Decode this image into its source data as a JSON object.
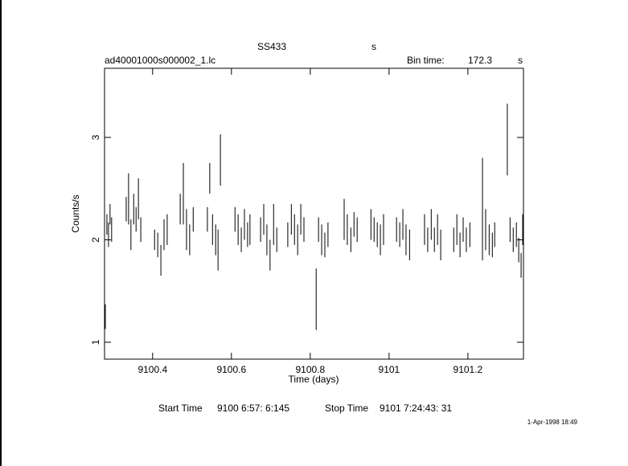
{
  "chart_data": {
    "type": "errorbar",
    "title": "SS433",
    "title_unit": "s",
    "file_name": "ad40001000s000002_1.lc",
    "bin_time_label": "Bin time:",
    "bin_time": "172.3",
    "bin_time_unit": "s",
    "xlabel": "Time (days)",
    "ylabel": "Counts/s",
    "start_label": "Start Time",
    "start_time": "9100  6:57: 6:145",
    "stop_label": "Stop Time",
    "stop_time": "9101  7:24:43: 31",
    "date_stamp": "1-Apr-1998 18:49",
    "xlim": [
      9100.278,
      9101.341
    ],
    "xticks": [
      9100.4,
      9100.6,
      9100.8,
      9101,
      9101.2
    ],
    "ylim": [
      0.835,
      3.675
    ],
    "yticks": [
      1,
      2,
      3
    ],
    "color": "#000000",
    "x": [
      9100.28,
      9100.284,
      9100.288,
      9100.292,
      9100.296,
      9100.333,
      9100.339,
      9100.345,
      9100.352,
      9100.358,
      9100.364,
      9100.37,
      9100.405,
      9100.413,
      9100.421,
      9100.429,
      9100.437,
      9100.47,
      9100.478,
      9100.486,
      9100.494,
      9100.503,
      9100.539,
      9100.545,
      9100.552,
      9100.56,
      9100.566,
      9100.572,
      9100.609,
      9100.617,
      9100.625,
      9100.633,
      9100.641,
      9100.647,
      9100.674,
      9100.682,
      9100.69,
      9100.698,
      9100.707,
      9100.715,
      9100.743,
      9100.752,
      9100.76,
      9100.768,
      9100.776,
      9100.784,
      9100.815,
      9100.821,
      9100.829,
      9100.837,
      9100.845,
      9100.886,
      9100.894,
      9100.903,
      9100.911,
      9100.919,
      9100.954,
      9100.962,
      9100.97,
      9100.978,
      9100.986,
      9101.019,
      9101.027,
      9101.035,
      9101.043,
      9101.052,
      9101.09,
      9101.098,
      9101.107,
      9101.115,
      9101.123,
      9101.131,
      9101.164,
      9101.172,
      9101.18,
      9101.188,
      9101.196,
      9101.205,
      9101.237,
      9101.245,
      9101.254,
      9101.262,
      9101.268,
      9101.3,
      9101.307,
      9101.315,
      9101.323,
      9101.329,
      9101.335,
      9101.339
    ],
    "values": [
      1.25,
      2.15,
      2.05,
      2.25,
      2.1,
      2.3,
      2.4,
      2.05,
      2.3,
      2.2,
      2.4,
      2.1,
      2.0,
      1.95,
      1.8,
      2.05,
      2.1,
      2.3,
      2.45,
      2.1,
      2.0,
      2.2,
      2.2,
      2.6,
      2.1,
      2.0,
      1.9,
      2.78,
      2.2,
      2.1,
      2.0,
      2.15,
      2.05,
      2.1,
      2.1,
      2.2,
      2.0,
      1.85,
      2.15,
      2.0,
      2.05,
      2.2,
      2.1,
      2.0,
      2.2,
      2.1,
      1.42,
      2.1,
      2.0,
      1.95,
      2.05,
      2.2,
      2.1,
      2.0,
      2.15,
      2.1,
      2.15,
      2.1,
      2.05,
      2.0,
      2.1,
      2.1,
      2.05,
      2.15,
      2.0,
      1.95,
      2.1,
      2.0,
      2.15,
      2.0,
      2.1,
      1.95,
      2.0,
      2.1,
      1.95,
      2.1,
      2.0,
      2.05,
      2.3,
      2.1,
      2.0,
      1.95,
      2.05,
      2.98,
      2.1,
      2.0,
      2.05,
      1.9,
      1.75,
      2.1
    ],
    "errors": [
      0.12,
      0.1,
      0.12,
      0.1,
      0.12,
      0.12,
      0.25,
      0.15,
      0.15,
      0.12,
      0.2,
      0.12,
      0.1,
      0.12,
      0.15,
      0.15,
      0.15,
      0.15,
      0.3,
      0.2,
      0.15,
      0.12,
      0.12,
      0.15,
      0.15,
      0.15,
      0.2,
      0.25,
      0.12,
      0.15,
      0.12,
      0.15,
      0.12,
      0.15,
      0.12,
      0.15,
      0.15,
      0.15,
      0.2,
      0.12,
      0.12,
      0.15,
      0.15,
      0.15,
      0.15,
      0.12,
      0.3,
      0.12,
      0.15,
      0.12,
      0.12,
      0.2,
      0.15,
      0.12,
      0.12,
      0.12,
      0.15,
      0.12,
      0.12,
      0.15,
      0.15,
      0.12,
      0.12,
      0.15,
      0.15,
      0.15,
      0.15,
      0.12,
      0.15,
      0.12,
      0.15,
      0.15,
      0.12,
      0.15,
      0.12,
      0.12,
      0.12,
      0.12,
      0.5,
      0.2,
      0.15,
      0.12,
      0.12,
      0.35,
      0.12,
      0.12,
      0.12,
      0.12,
      0.12,
      0.15
    ]
  }
}
